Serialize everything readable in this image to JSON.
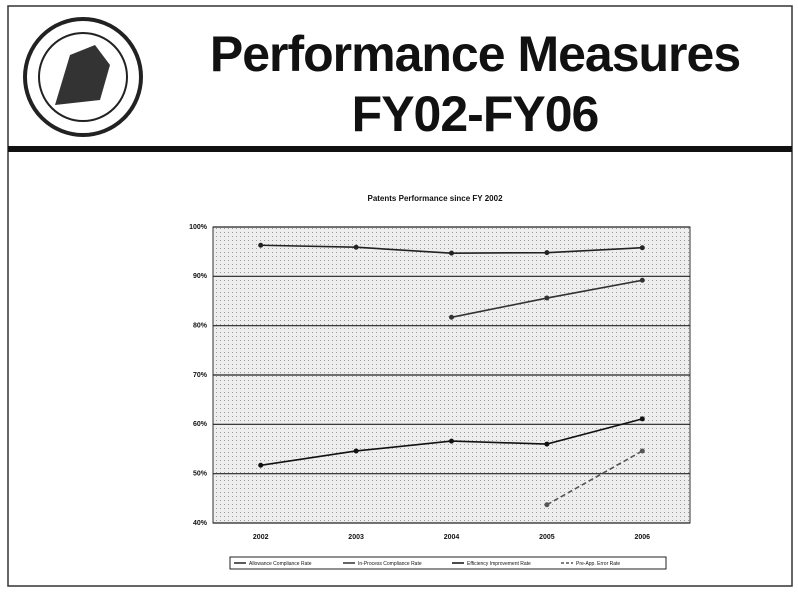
{
  "slide": {
    "title": [
      "Performance Measures",
      "FY02-FY06"
    ]
  },
  "chart_data": {
    "type": "line",
    "title": "Patents Performance since FY 2002",
    "categories": [
      "2002",
      "2003",
      "2004",
      "2005",
      "2006"
    ],
    "series": [
      {
        "name": "Allowance Compliance Rate",
        "color": "#222222",
        "values": [
          96.3,
          95.9,
          94.7,
          94.8,
          95.8
        ]
      },
      {
        "name": "In-Process Compliance Rate",
        "color": "#333333",
        "values": [
          null,
          null,
          81.7,
          85.6,
          89.2
        ]
      },
      {
        "name": "Efficiency Improvement Rate",
        "color": "#111111",
        "values": [
          51.7,
          54.6,
          56.6,
          56.0,
          61.1
        ]
      },
      {
        "name": "Pre-App. Error Rate",
        "color": "#555555",
        "dashed": true,
        "values": [
          null,
          null,
          null,
          43.7,
          54.6
        ]
      }
    ],
    "ylim": [
      40,
      100
    ],
    "yticks": [
      {
        "value": 40,
        "label": "40%"
      },
      {
        "value": 50,
        "label": "50%"
      },
      {
        "value": 60,
        "label": "60%"
      },
      {
        "value": 70,
        "label": "70%"
      },
      {
        "value": 80,
        "label": "80%"
      },
      {
        "value": 90,
        "label": "90%"
      },
      {
        "value": 100,
        "label": "100%"
      }
    ],
    "grid": true,
    "legend": "bottom"
  }
}
